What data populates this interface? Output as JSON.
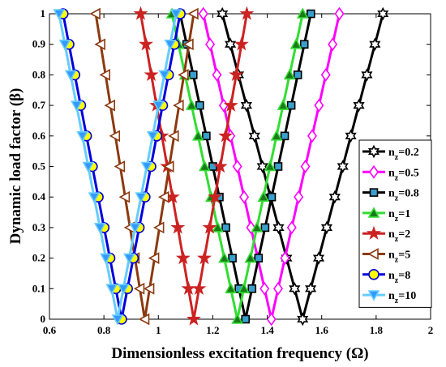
{
  "chart_data": {
    "type": "line",
    "xlabel": "Dimensionless excitation frequency (Ω)",
    "ylabel": "Dynamic load factor (β)",
    "xlim": [
      0.6,
      2
    ],
    "ylim": [
      0,
      1
    ],
    "x_ticks": [
      "0.6",
      "0.8",
      "1",
      "1.2",
      "1.4",
      "1.6",
      "1.8",
      "2"
    ],
    "y_ticks": [
      "0",
      "0.1",
      "0.2",
      "0.3",
      "0.4",
      "0.5",
      "0.6",
      "0.7",
      "0.8",
      "0.9",
      "1"
    ],
    "grid": false,
    "legend_position": "right",
    "beta_levels": [
      0,
      0.1,
      0.2,
      0.3,
      0.4,
      0.5,
      0.6,
      0.7,
      0.8,
      0.9,
      1.0
    ],
    "series": [
      {
        "name": "n_z=0.2",
        "legend_base": "n",
        "legend_sub": "z",
        "legend_value": "=0.2",
        "color": "#000000",
        "fill": "#ffffff",
        "marker": "hexagram",
        "vertex": 1.53,
        "half_width": 0.295
      },
      {
        "name": "n_z=0.5",
        "legend_base": "n",
        "legend_sub": "z",
        "legend_value": "=0.5",
        "color": "#ff00ff",
        "fill": "#ffffff",
        "marker": "diamond",
        "vertex": 1.415,
        "half_width": 0.25
      },
      {
        "name": "n_z=0.8",
        "legend_base": "n",
        "legend_sub": "z",
        "legend_value": "=0.8",
        "color": "#000000",
        "fill": "#3a9fcc",
        "marker": "square",
        "vertex": 1.32,
        "half_width": 0.24
      },
      {
        "name": "n_z=1",
        "legend_base": "n",
        "legend_sub": "z",
        "legend_value": "=1",
        "color": "#33dd33",
        "fill": "#1a7a1a",
        "marker": "triangle",
        "vertex": 1.29,
        "half_width": 0.24
      },
      {
        "name": "n_z=2",
        "legend_base": "n",
        "legend_sub": "z",
        "legend_value": "=2",
        "color": "#cc2222",
        "fill": "#cc2222",
        "marker": "pentagram",
        "vertex": 1.13,
        "half_width": 0.195
      },
      {
        "name": "n_z=5",
        "legend_base": "n",
        "legend_sub": "z",
        "legend_value": "=5",
        "color": "#8b3a10",
        "fill": "#ffffff",
        "marker": "triangle-left",
        "vertex": 0.95,
        "half_width": 0.18
      },
      {
        "name": "n_z=8",
        "legend_base": "n",
        "legend_sub": "z",
        "legend_value": "=8",
        "color": "#0000dd",
        "fill": "#ffff00",
        "marker": "circle",
        "vertex": 0.865,
        "half_width": 0.215
      },
      {
        "name": "n_z=10",
        "legend_base": "n",
        "legend_sub": "z",
        "legend_value": "=10",
        "color": "#66ccff",
        "fill": "#3399ff",
        "marker": "triangle-down",
        "vertex": 0.85,
        "half_width": 0.215
      }
    ]
  }
}
